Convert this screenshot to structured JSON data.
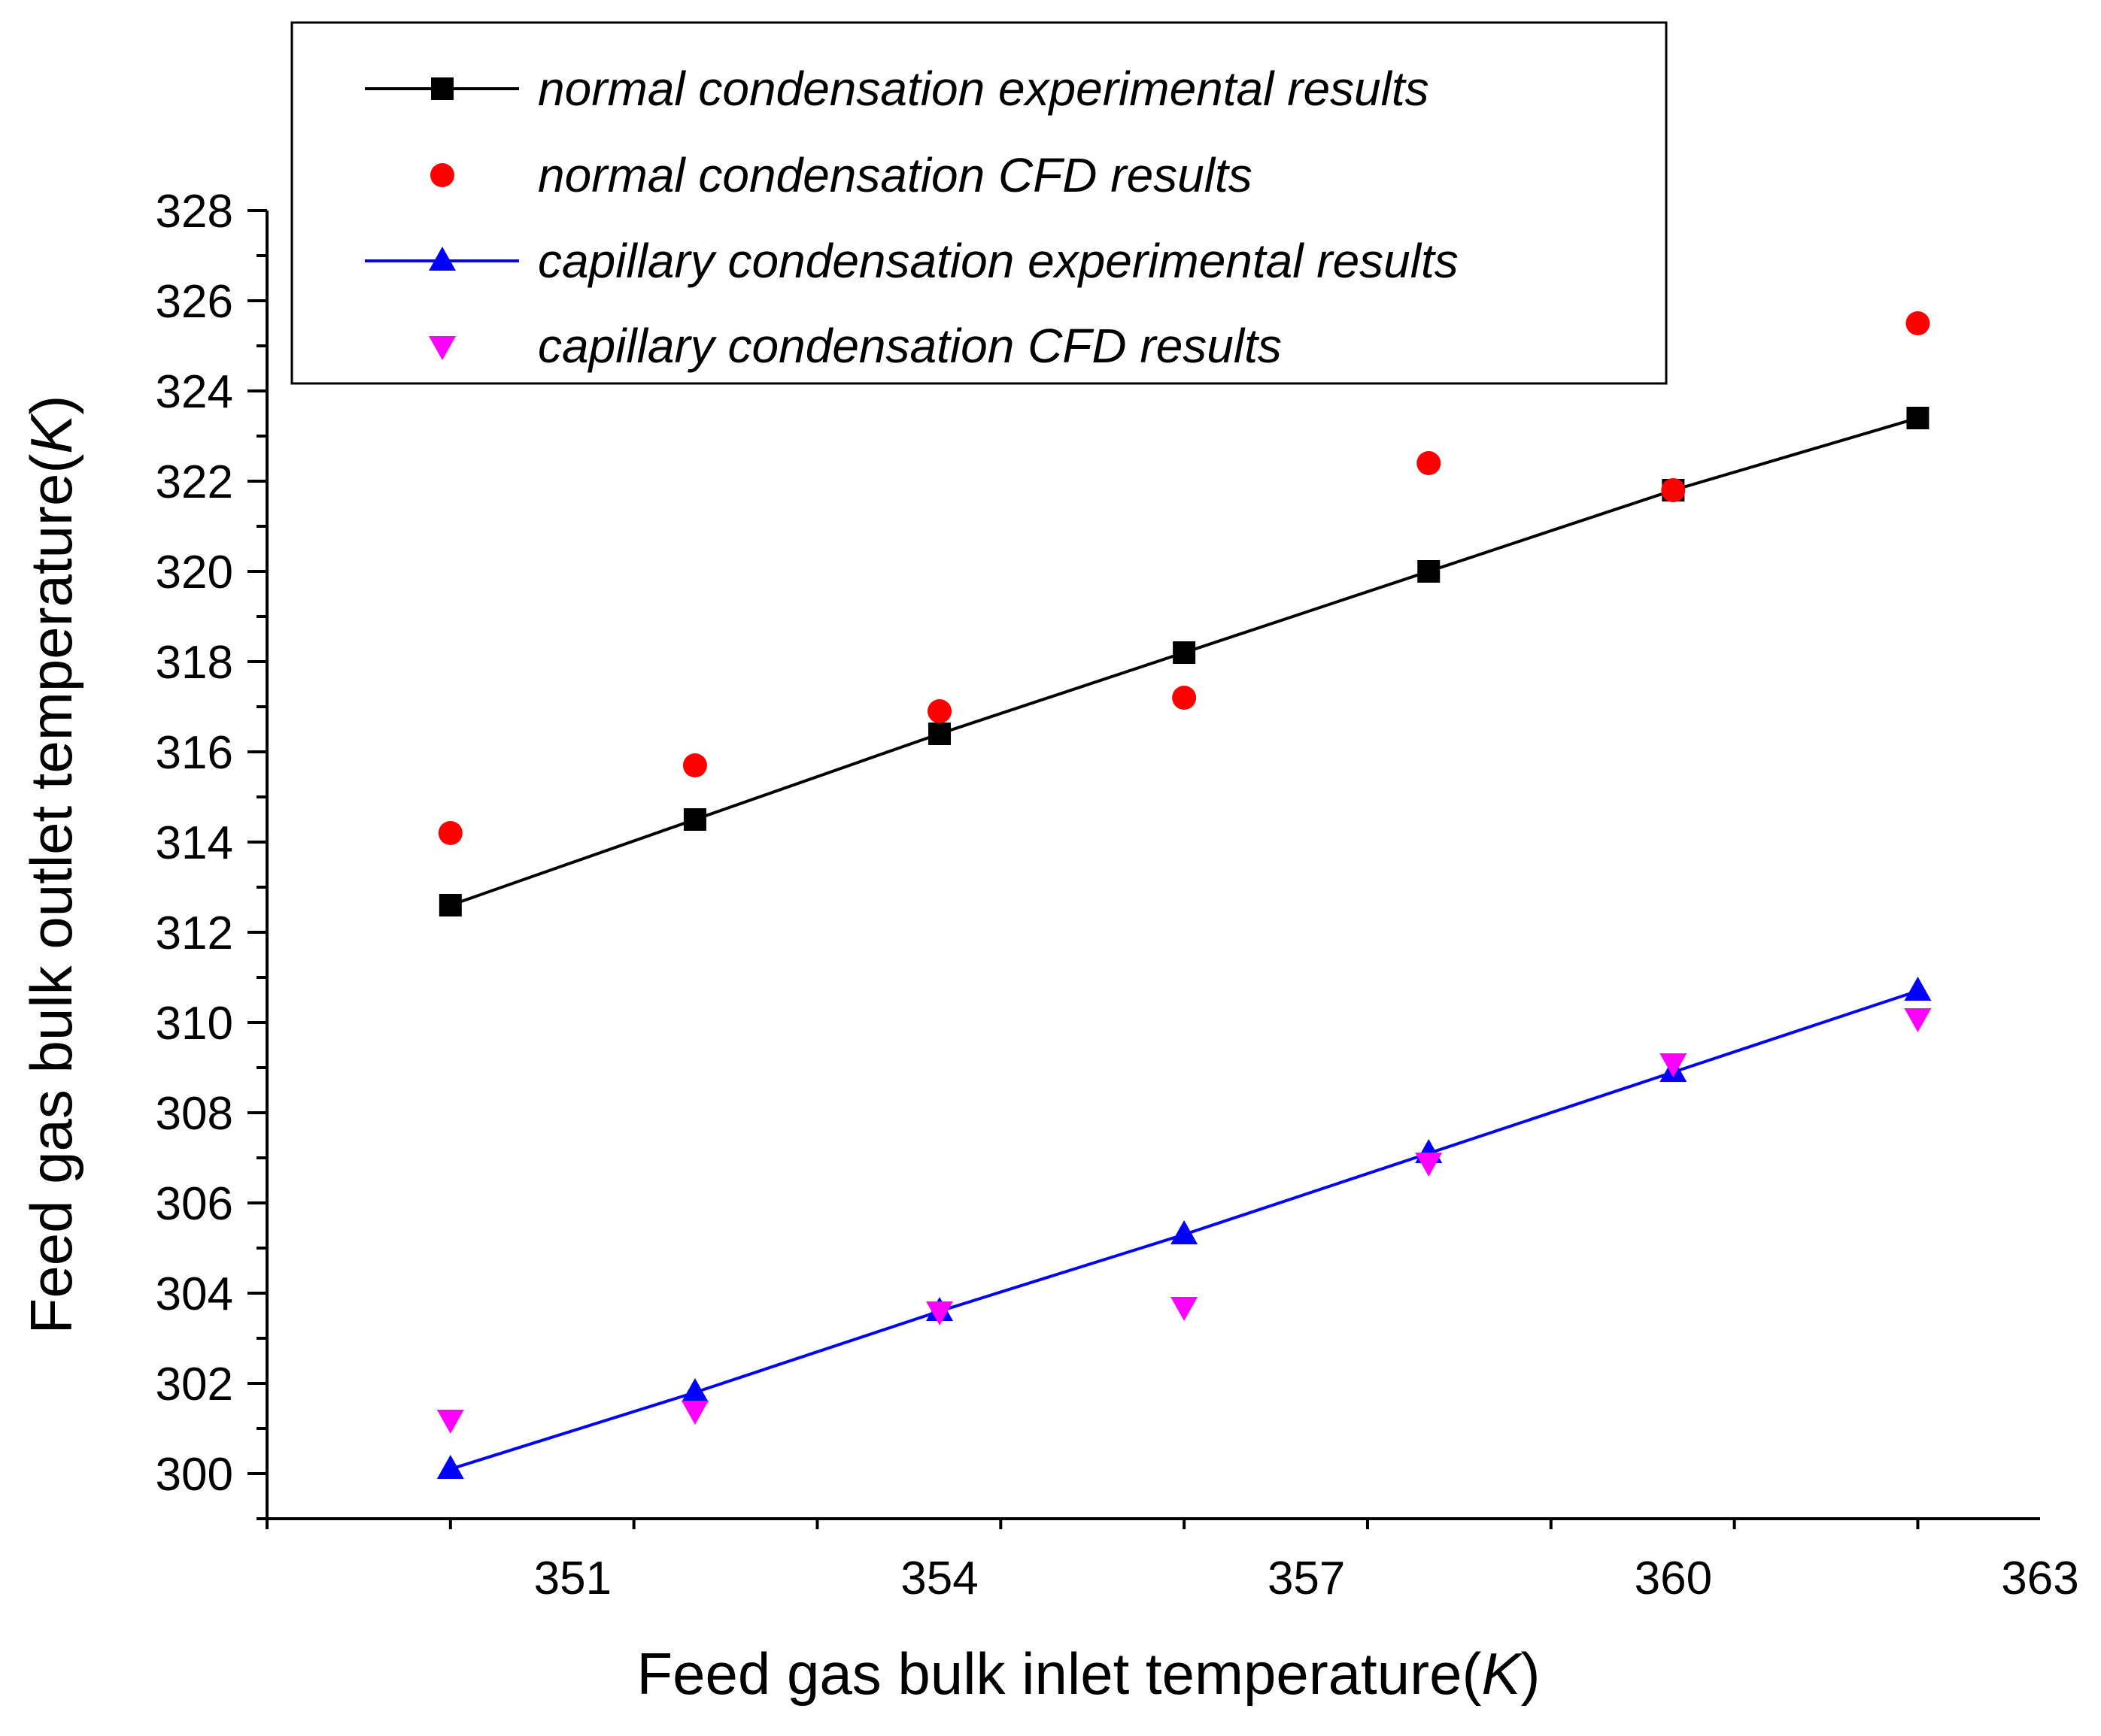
{
  "chart_data": {
    "type": "scatter",
    "title": "",
    "xlabel": {
      "main": "Feed gas bulk inlet temperature(",
      "unit": "K",
      "close": ")"
    },
    "ylabel": {
      "main": "Feed gas bulk outlet temperature(",
      "unit": "K",
      "close": ")"
    },
    "xlim": [
      348.5,
      363
    ],
    "ylim": [
      299,
      328
    ],
    "xticks": [
      351,
      354,
      357,
      360,
      363
    ],
    "yticks": [
      300,
      302,
      304,
      306,
      308,
      310,
      312,
      314,
      316,
      318,
      320,
      322,
      324,
      326,
      328
    ],
    "legend_position": "top",
    "series": [
      {
        "name": "normal condensation experimental results",
        "marker": "square",
        "line": true,
        "color": "#000000",
        "x": [
          350.0,
          352.0,
          354.0,
          356.0,
          358.0,
          360.0,
          362.0
        ],
        "y": [
          312.6,
          314.5,
          316.4,
          318.2,
          320.0,
          321.8,
          323.4
        ]
      },
      {
        "name": "normal condensation CFD results",
        "marker": "circle",
        "line": false,
        "color": "#ff0000",
        "x": [
          350.0,
          352.0,
          354.0,
          356.0,
          358.0,
          360.0,
          362.0
        ],
        "y": [
          314.2,
          315.7,
          316.9,
          317.2,
          322.4,
          321.8,
          325.5
        ]
      },
      {
        "name": "capillary condensation experimental results",
        "marker": "triangle-up",
        "line": true,
        "color": "#0000ff",
        "x": [
          350.0,
          352.0,
          354.0,
          356.0,
          358.0,
          360.0,
          362.0
        ],
        "y": [
          300.1,
          301.8,
          303.6,
          305.3,
          307.1,
          308.9,
          310.7
        ]
      },
      {
        "name": "capillary condensation CFD results",
        "marker": "triangle-down",
        "line": false,
        "color": "#ff00ff",
        "x": [
          350.0,
          352.0,
          354.0,
          356.0,
          358.0,
          360.0,
          362.0
        ],
        "y": [
          301.2,
          301.4,
          303.6,
          303.7,
          306.9,
          309.1,
          310.1
        ]
      }
    ]
  }
}
